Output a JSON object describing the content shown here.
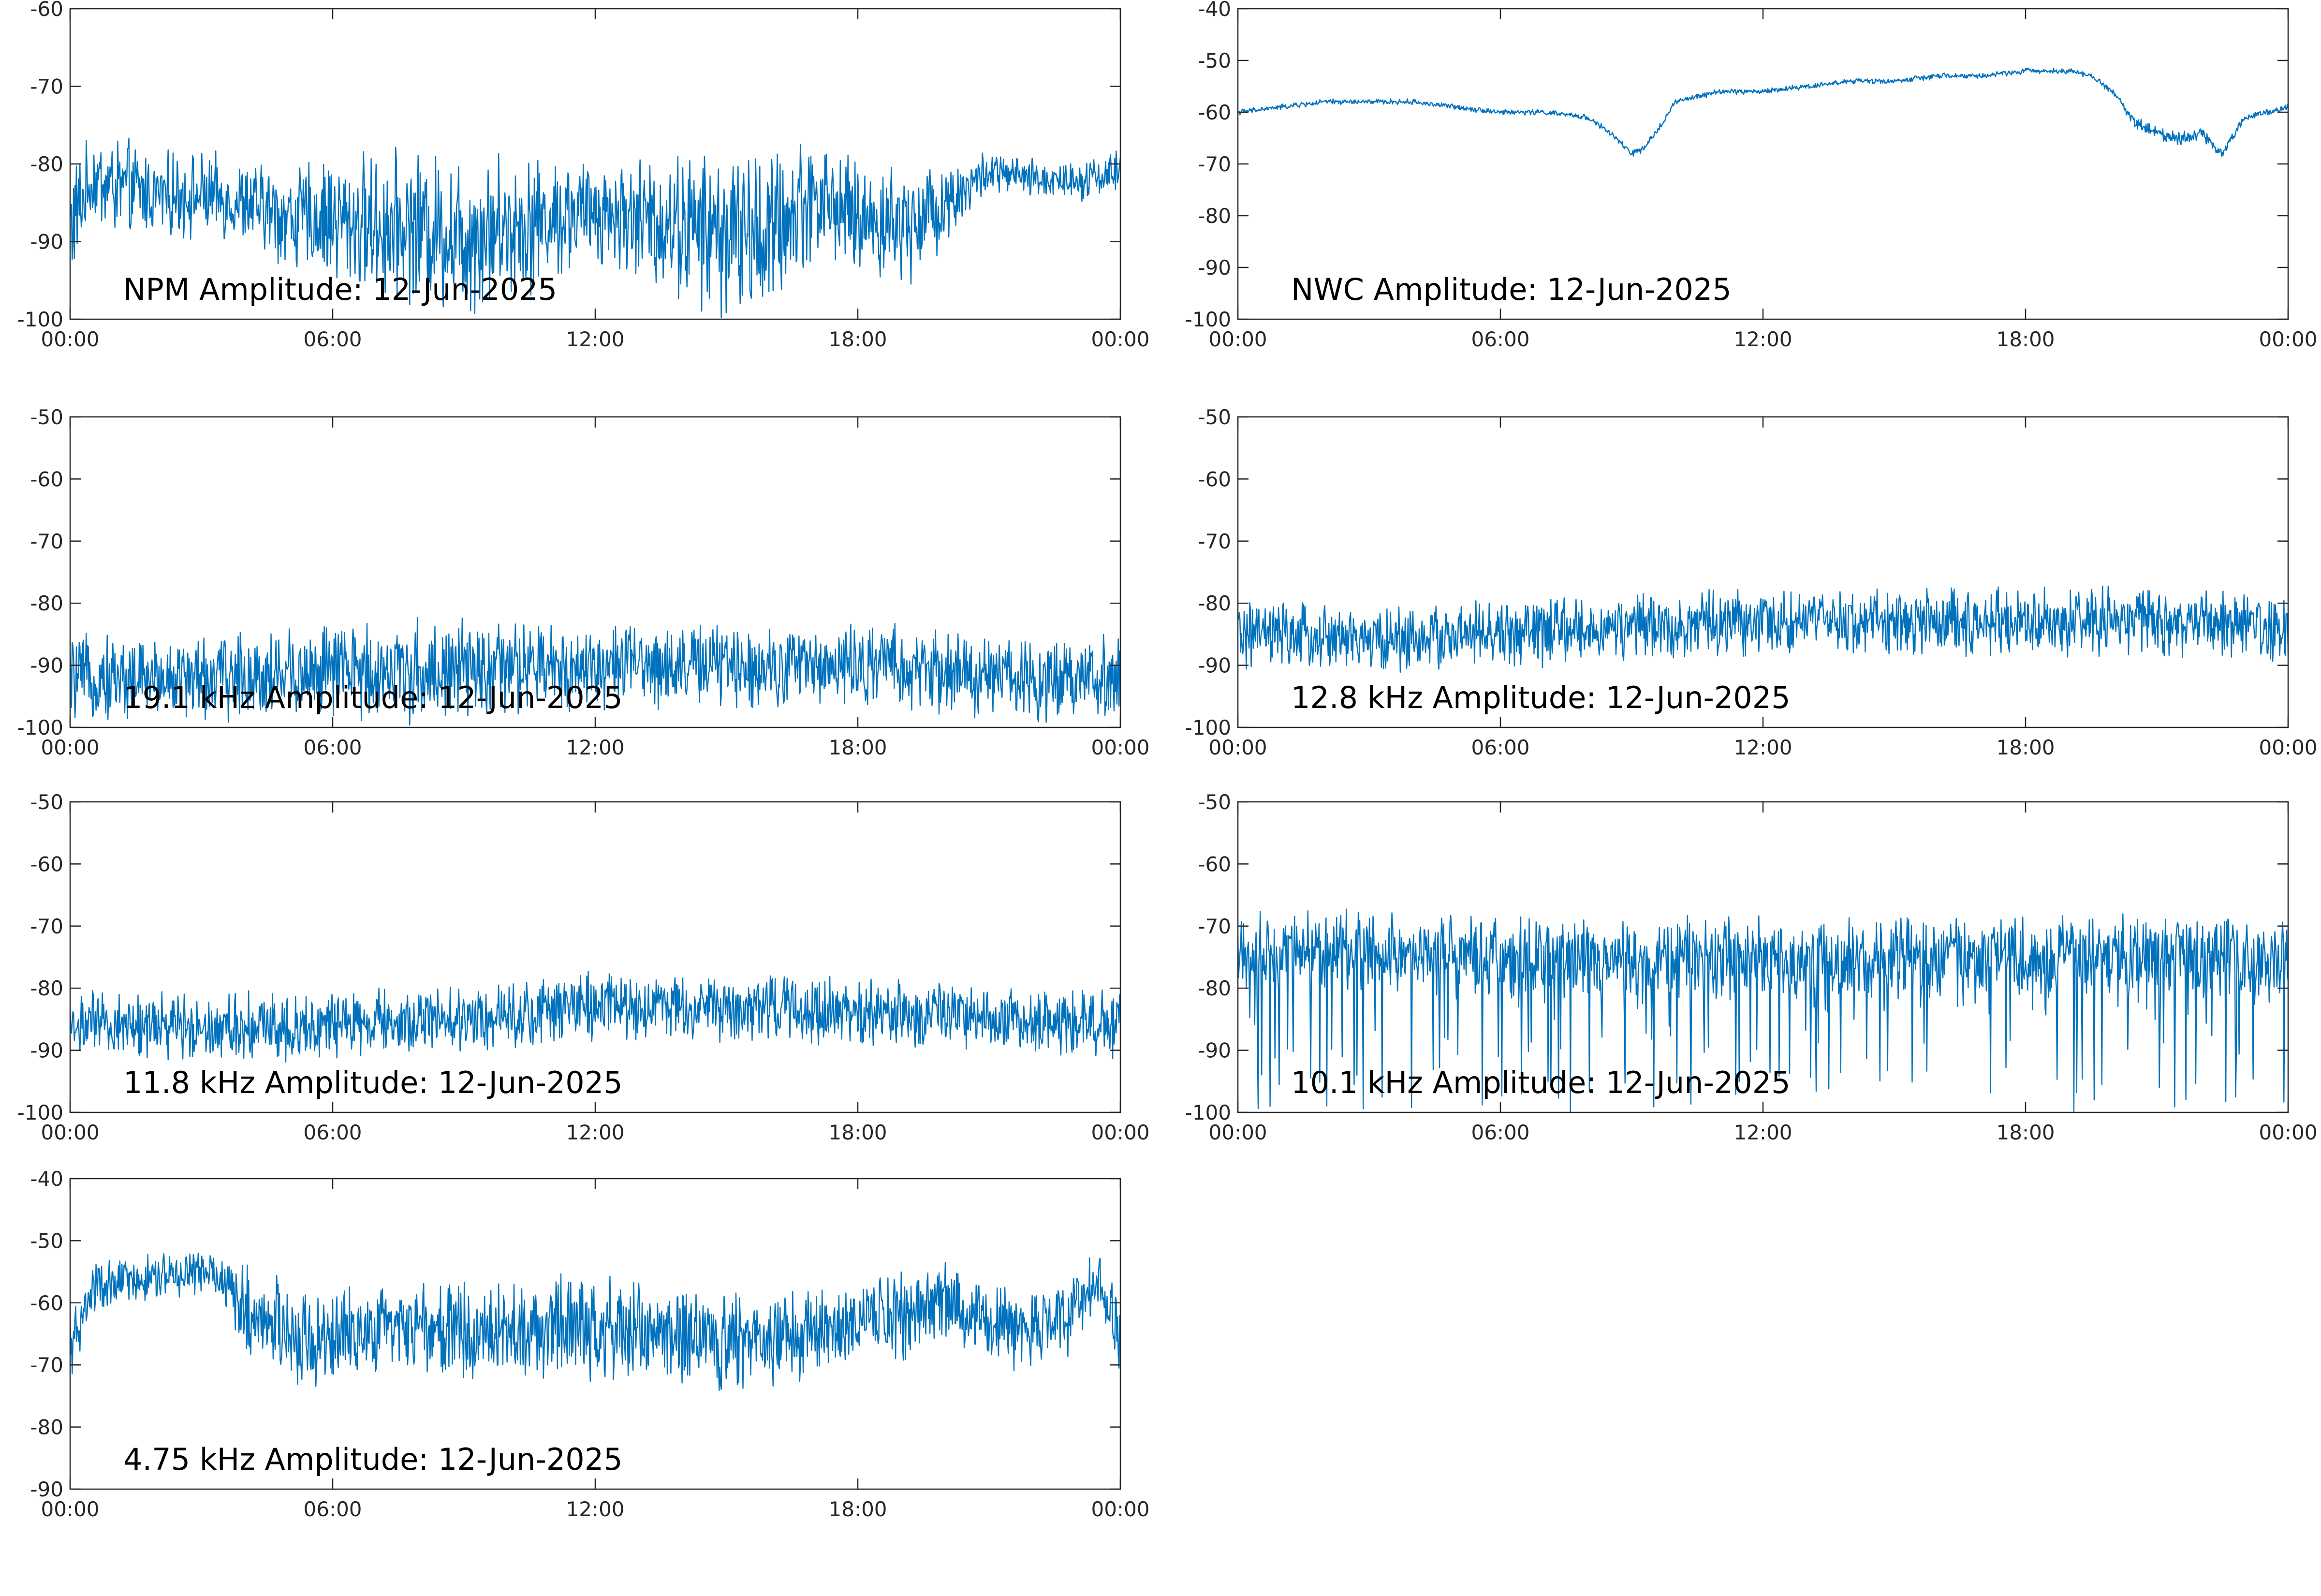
{
  "figure": {
    "line_color": "#0072BD",
    "date": "12-Jun-2025"
  },
  "chart_data": [
    {
      "id": "npm",
      "type": "line",
      "title": "NPM Amplitude: 12-Jun-2025",
      "xlabel": "",
      "ylabel": "",
      "xlim": [
        "00:00",
        "00:00"
      ],
      "x_ticks": [
        "00:00",
        "06:00",
        "12:00",
        "18:00",
        "00:00"
      ],
      "ylim": [
        -100,
        -60
      ],
      "y_ticks": [
        "-100",
        "-90",
        "-80",
        "-70",
        "-60"
      ],
      "grid": false,
      "series": [
        {
          "x_hours": [
            0,
            0.5,
            1,
            2,
            3,
            4,
            5,
            6,
            7,
            8,
            9,
            10,
            11,
            12,
            13,
            14,
            15,
            16,
            17,
            18,
            19,
            20,
            20.5,
            21,
            22,
            23,
            24
          ],
          "values": [
            -88,
            -82,
            -83,
            -84,
            -84,
            -85,
            -87,
            -87,
            -88,
            -88,
            -89,
            -88,
            -87,
            -86,
            -87,
            -88,
            -89,
            -89,
            -84,
            -87,
            -88,
            -85,
            -83,
            -81,
            -82,
            -82,
            -81
          ],
          "spread": [
            6,
            4,
            5,
            4,
            4,
            4,
            5,
            6,
            7,
            7,
            8,
            7,
            6,
            5,
            6,
            7,
            8,
            8,
            6,
            5,
            6,
            4,
            3,
            2,
            2,
            2,
            2
          ]
        }
      ]
    },
    {
      "id": "nwc",
      "type": "line",
      "title": "NWC Amplitude: 12-Jun-2025",
      "xlabel": "",
      "ylabel": "",
      "xlim": [
        "00:00",
        "00:00"
      ],
      "x_ticks": [
        "00:00",
        "06:00",
        "12:00",
        "18:00",
        "00:00"
      ],
      "ylim": [
        -100,
        -40
      ],
      "y_ticks": [
        "-100",
        "-90",
        "-80",
        "-70",
        "-60",
        "-50",
        "-40"
      ],
      "grid": false,
      "series": [
        {
          "x_hours": [
            0,
            1,
            2,
            3,
            4,
            5,
            6,
            7,
            8,
            8.5,
            9,
            9.3,
            9.7,
            10,
            11,
            12,
            13,
            14,
            15,
            16,
            17,
            18,
            19,
            19.5,
            20,
            20.5,
            21,
            21.5,
            22,
            22.5,
            23,
            24
          ],
          "values": [
            -60,
            -59,
            -58,
            -58,
            -58,
            -59,
            -60,
            -60,
            -61,
            -64,
            -68,
            -67,
            -62,
            -58,
            -56,
            -56,
            -55,
            -54,
            -54,
            -53,
            -53,
            -52,
            -52,
            -53,
            -56,
            -62,
            -64,
            -65,
            -64,
            -68,
            -61,
            -59
          ],
          "spread": [
            0.4,
            0.4,
            0.4,
            0.4,
            0.4,
            0.4,
            0.4,
            0.4,
            0.4,
            0.5,
            0.5,
            0.5,
            0.5,
            0.4,
            0.4,
            0.4,
            0.4,
            0.4,
            0.4,
            0.4,
            0.4,
            0.4,
            0.4,
            0.4,
            0.5,
            0.8,
            1,
            1,
            1,
            0.8,
            0.5,
            0.4
          ]
        }
      ]
    },
    {
      "id": "19.1khz",
      "type": "line",
      "title": "19.1 kHz Amplitude: 12-Jun-2025",
      "xlabel": "",
      "ylabel": "",
      "xlim": [
        "00:00",
        "00:00"
      ],
      "x_ticks": [
        "00:00",
        "06:00",
        "12:00",
        "18:00",
        "00:00"
      ],
      "ylim": [
        -100,
        -50
      ],
      "y_ticks": [
        "-100",
        "-90",
        "-80",
        "-70",
        "-60",
        "-50"
      ],
      "grid": false,
      "series": [
        {
          "x_hours": [
            0,
            3,
            6,
            9,
            12,
            15,
            18,
            21,
            24
          ],
          "values": [
            -92,
            -92,
            -91,
            -91,
            -90,
            -90,
            -90,
            -92,
            -92
          ],
          "spread": [
            5,
            5,
            6,
            6,
            5,
            5,
            5,
            5,
            5
          ]
        }
      ]
    },
    {
      "id": "12.8khz",
      "type": "line",
      "title": "12.8 kHz Amplitude: 12-Jun-2025",
      "xlabel": "",
      "ylabel": "",
      "xlim": [
        "00:00",
        "00:00"
      ],
      "x_ticks": [
        "00:00",
        "06:00",
        "12:00",
        "18:00",
        "00:00"
      ],
      "ylim": [
        -100,
        -50
      ],
      "y_ticks": [
        "-100",
        "-90",
        "-80",
        "-70",
        "-60",
        "-50"
      ],
      "grid": false,
      "series": [
        {
          "x_hours": [
            0,
            3,
            6,
            9,
            12,
            15,
            18,
            21,
            24
          ],
          "values": [
            -85,
            -86,
            -85,
            -84,
            -83,
            -83,
            -83,
            -83,
            -84
          ],
          "spread": [
            4,
            4,
            4,
            4,
            4,
            4,
            4,
            4,
            4
          ]
        }
      ]
    },
    {
      "id": "11.8khz",
      "type": "line",
      "title": "11.8 kHz Amplitude: 12-Jun-2025",
      "xlabel": "",
      "ylabel": "",
      "xlim": [
        "00:00",
        "00:00"
      ],
      "x_ticks": [
        "00:00",
        "06:00",
        "12:00",
        "18:00",
        "00:00"
      ],
      "ylim": [
        -100,
        -50
      ],
      "y_ticks": [
        "-100",
        "-90",
        "-80",
        "-70",
        "-60",
        "-50"
      ],
      "grid": false,
      "series": [
        {
          "x_hours": [
            0,
            3,
            6,
            9,
            12,
            15,
            18,
            21,
            24
          ],
          "values": [
            -86,
            -86,
            -86,
            -85,
            -83,
            -83,
            -84,
            -85,
            -86
          ],
          "spread": [
            4,
            4,
            4,
            4,
            4,
            4,
            4,
            4,
            4
          ]
        }
      ]
    },
    {
      "id": "10.1khz",
      "type": "line",
      "title": "10.1 kHz Amplitude: 12-Jun-2025",
      "xlabel": "",
      "ylabel": "",
      "xlim": [
        "00:00",
        "00:00"
      ],
      "x_ticks": [
        "00:00",
        "06:00",
        "12:00",
        "18:00",
        "00:00"
      ],
      "ylim": [
        -100,
        -50
      ],
      "y_ticks": [
        "-100",
        "-90",
        "-80",
        "-70",
        "-60",
        "-50"
      ],
      "grid": false,
      "series": [
        {
          "x_hours": [
            0,
            3,
            6,
            9,
            12,
            15,
            18,
            21,
            24
          ],
          "values": [
            -74,
            -74,
            -75,
            -75,
            -75,
            -75,
            -75,
            -75,
            -75
          ],
          "spread": [
            5,
            5,
            5,
            5,
            5,
            5,
            5,
            5,
            5
          ],
          "dip_to": -100
        }
      ]
    },
    {
      "id": "4.75khz",
      "type": "line",
      "title": "4.75 kHz Amplitude: 12-Jun-2025",
      "xlabel": "",
      "ylabel": "",
      "xlim": [
        "00:00",
        "00:00"
      ],
      "x_ticks": [
        "00:00",
        "06:00",
        "12:00",
        "18:00",
        "00:00"
      ],
      "ylim": [
        -90,
        -40
      ],
      "y_ticks": [
        "-90",
        "-80",
        "-70",
        "-60",
        "-50",
        "-40"
      ],
      "grid": false,
      "series": [
        {
          "x_hours": [
            0,
            0.5,
            1,
            2,
            3,
            3.5,
            4,
            5,
            6,
            7,
            8,
            9,
            10,
            11,
            12,
            13,
            14,
            15,
            16,
            17,
            18,
            19,
            20,
            21,
            22,
            23,
            23.5,
            24
          ],
          "values": [
            -68,
            -58,
            -57,
            -56,
            -55,
            -56,
            -62,
            -65,
            -66,
            -64,
            -64,
            -65,
            -64,
            -64,
            -64,
            -65,
            -66,
            -67,
            -66,
            -65,
            -63,
            -62,
            -60,
            -63,
            -65,
            -61,
            -56,
            -66
          ],
          "spread": [
            5,
            3,
            3,
            3,
            3,
            3,
            6,
            6,
            6,
            5,
            5,
            6,
            6,
            6,
            6,
            6,
            6,
            6,
            6,
            5,
            5,
            5,
            5,
            5,
            5,
            5,
            3,
            6
          ]
        }
      ]
    }
  ]
}
